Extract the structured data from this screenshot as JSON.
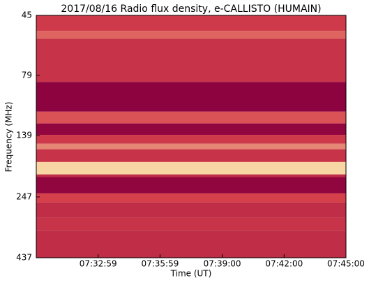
{
  "chart_data": {
    "type": "heatmap",
    "title": "2017/08/16  Radio flux density, e-CALLISTO (HUMAIN)",
    "x_label": "Time (UT)",
    "y_label": "Frequency (MHz)",
    "xlim": [
      26999,
      27900
    ],
    "xticks": [
      {
        "value": 27179,
        "label": "07:32:59"
      },
      {
        "value": 27359,
        "label": "07:35:59"
      },
      {
        "value": 27540,
        "label": "07:39:00"
      },
      {
        "value": 27720,
        "label": "07:42:00"
      },
      {
        "value": 27900,
        "label": "07:45:00"
      }
    ],
    "ylim": [
      437,
      45
    ],
    "yscale": "log",
    "yticks": [
      45,
      79,
      139,
      247,
      437
    ],
    "colormap": [
      "#8a003e",
      "#d6404b",
      "#fdf2b4"
    ],
    "bands": [
      {
        "from": 45,
        "to": 52,
        "level": 0.45
      },
      {
        "from": 52,
        "to": 56,
        "level": 0.6
      },
      {
        "from": 56,
        "to": 84,
        "level": 0.4
      },
      {
        "from": 84,
        "to": 111,
        "level": 0.02
      },
      {
        "from": 111,
        "to": 124,
        "level": 0.55
      },
      {
        "from": 124,
        "to": 138,
        "level": 0.05
      },
      {
        "from": 138,
        "to": 150,
        "level": 0.45
      },
      {
        "from": 150,
        "to": 158,
        "level": 0.7
      },
      {
        "from": 158,
        "to": 178,
        "level": 0.4
      },
      {
        "from": 178,
        "to": 200,
        "level": 0.92
      },
      {
        "from": 200,
        "to": 205,
        "level": 0.35
      },
      {
        "from": 205,
        "to": 239,
        "level": 0.05
      },
      {
        "from": 239,
        "to": 260,
        "level": 0.5
      },
      {
        "from": 260,
        "to": 300,
        "level": 0.35
      },
      {
        "from": 300,
        "to": 340,
        "level": 0.4
      },
      {
        "from": 340,
        "to": 437,
        "level": 0.35
      }
    ]
  }
}
